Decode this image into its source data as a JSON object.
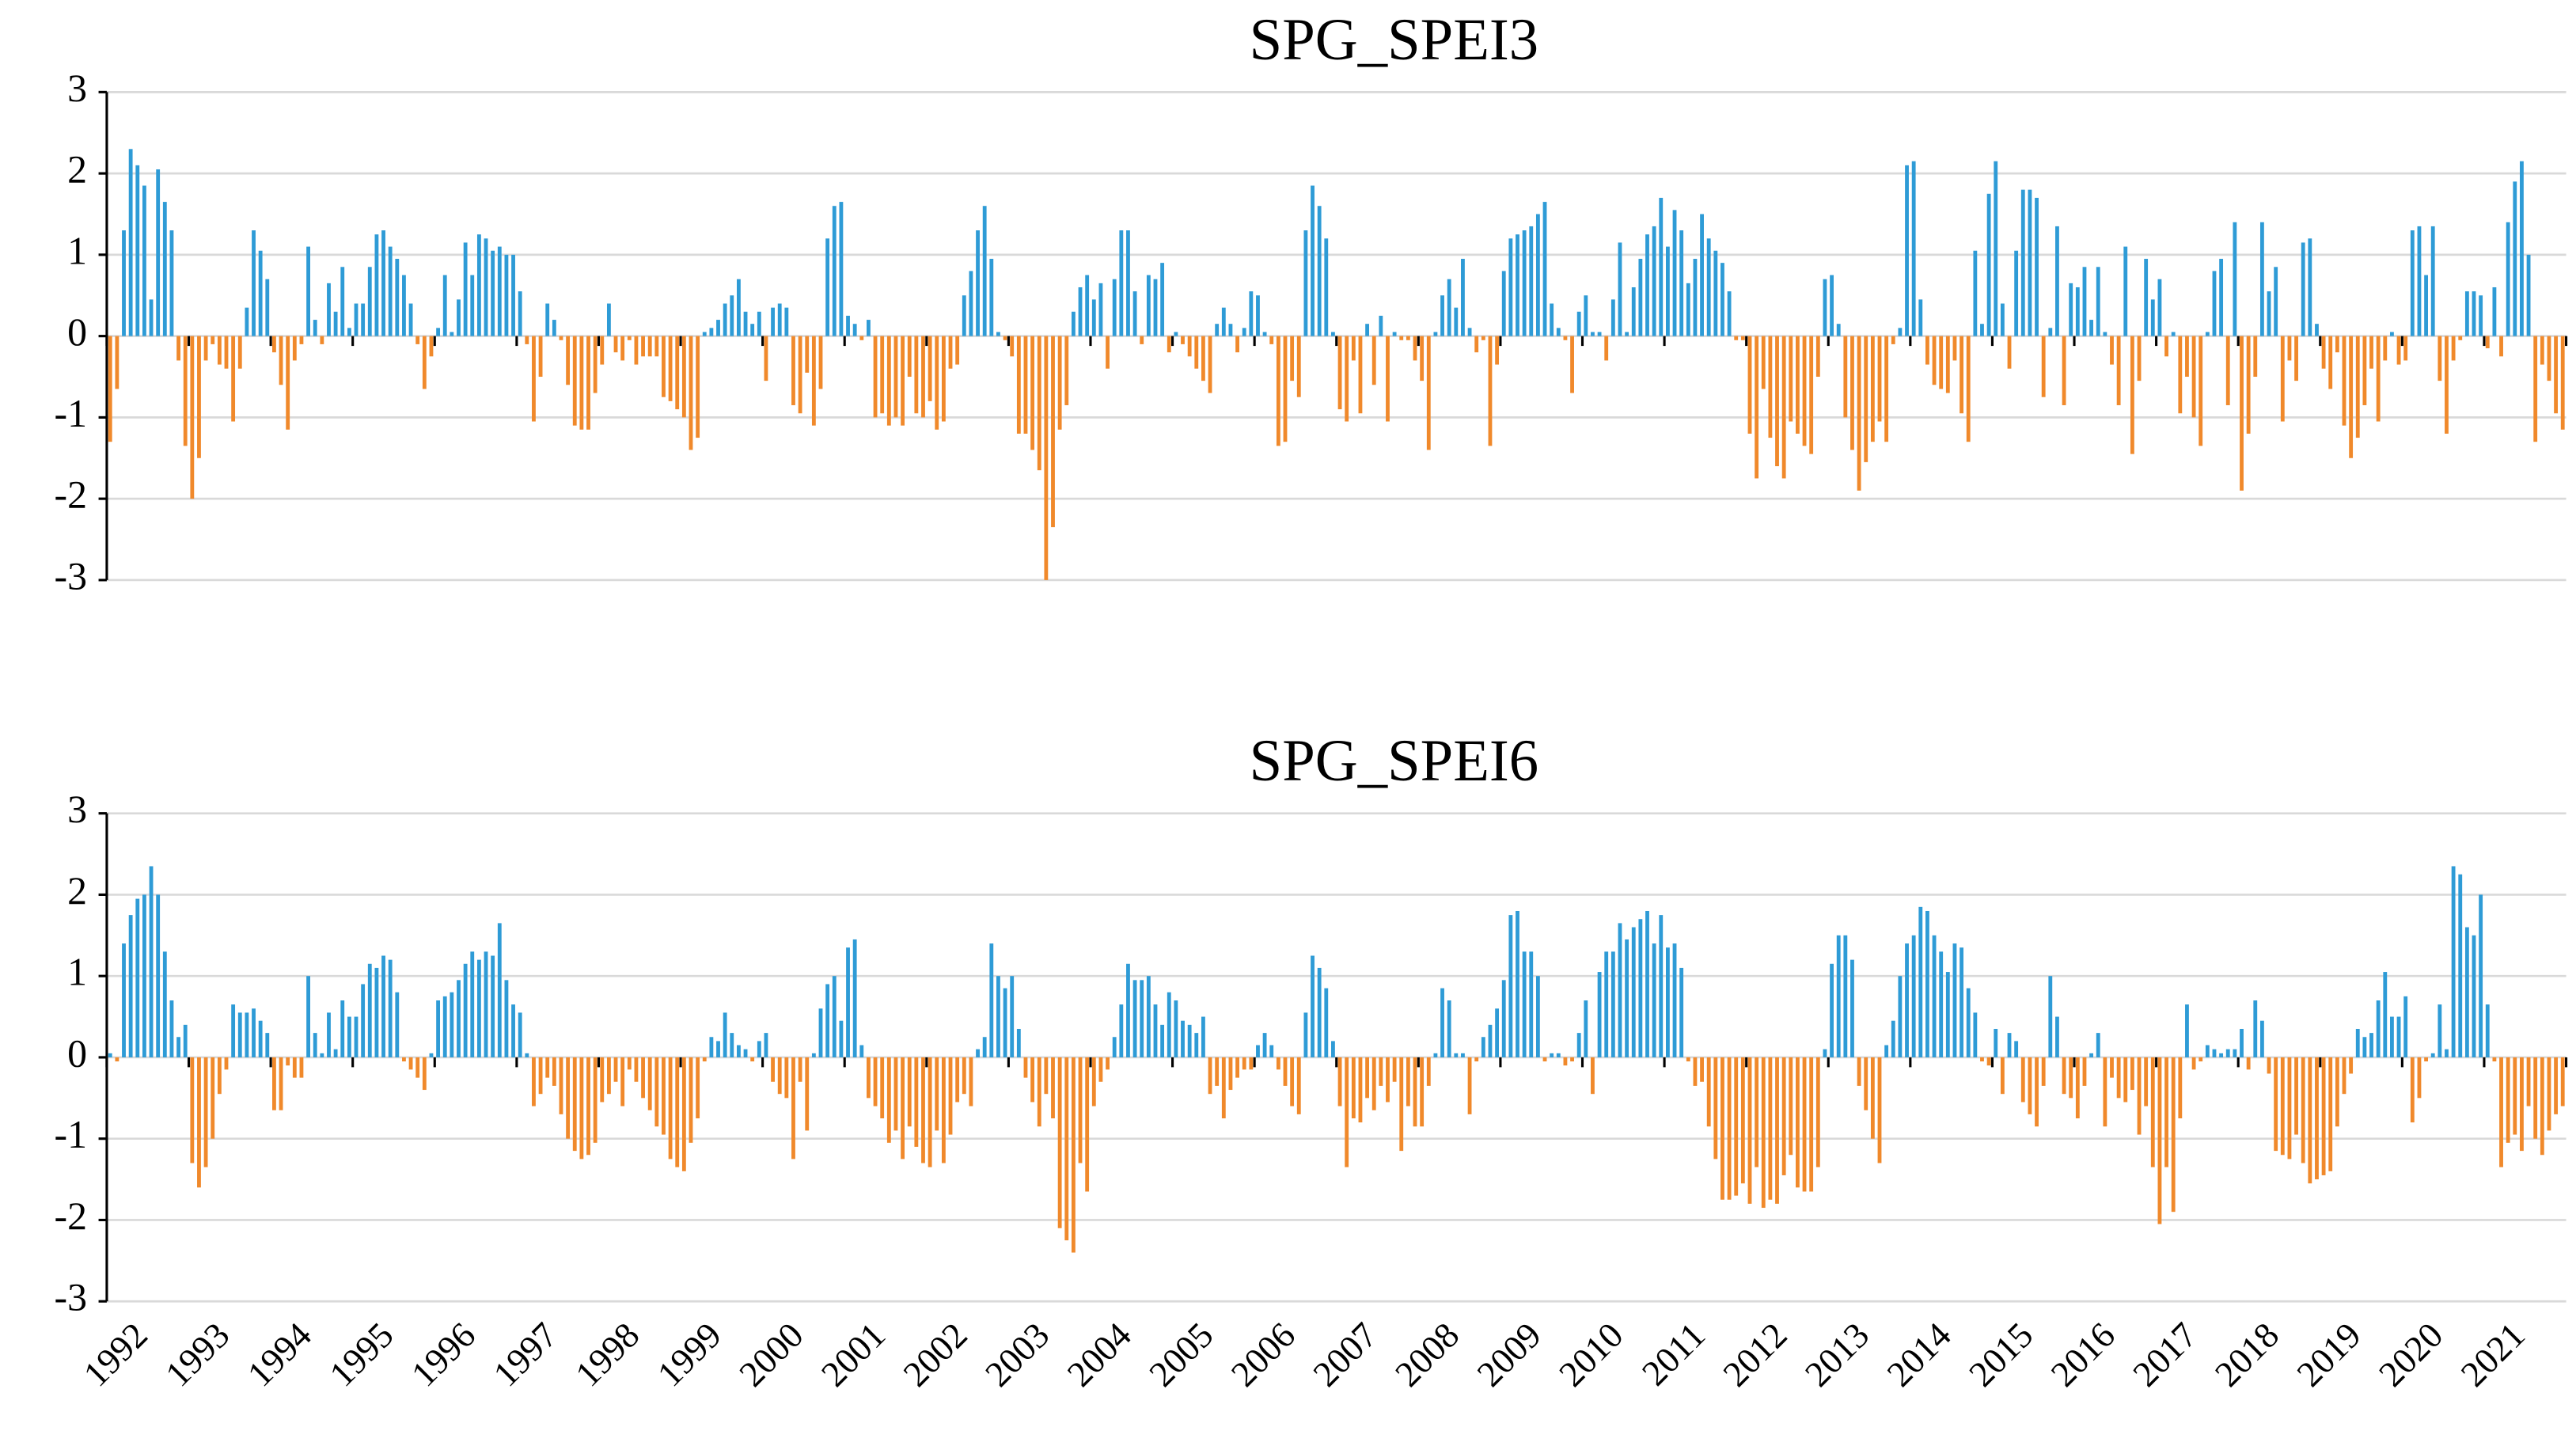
{
  "chart_data": [
    {
      "type": "bar",
      "title": "SPG_SPEI3",
      "ylim": [
        -3,
        3
      ],
      "yticks": [
        -3,
        -2,
        -1,
        0,
        1,
        2,
        3
      ],
      "grid": true,
      "positive_color": "#2e9bd6",
      "negative_color": "#f0892b",
      "values": [
        -1.3,
        -0.65,
        1.3,
        2.3,
        2.1,
        1.85,
        0.45,
        2.05,
        1.65,
        1.3,
        -0.3,
        -1.35,
        -2.0,
        -1.5,
        -0.3,
        -0.1,
        -0.35,
        -0.4,
        -1.05,
        -0.4,
        0.35,
        1.3,
        1.05,
        0.7,
        -0.2,
        -0.6,
        -1.15,
        -0.3,
        -0.1,
        1.1,
        0.2,
        -0.1,
        0.65,
        0.3,
        0.85,
        0.1,
        0.4,
        0.4,
        0.85,
        1.25,
        1.3,
        1.1,
        0.95,
        0.75,
        0.4,
        -0.1,
        -0.65,
        -0.25,
        0.1,
        0.75,
        0.05,
        0.45,
        1.15,
        0.75,
        1.25,
        1.2,
        1.05,
        1.1,
        1.0,
        1.0,
        0.55,
        -0.1,
        -1.05,
        -0.5,
        0.4,
        0.2,
        -0.05,
        -0.6,
        -1.1,
        -1.15,
        -1.15,
        -0.7,
        -0.35,
        0.4,
        -0.2,
        -0.3,
        -0.05,
        -0.35,
        -0.25,
        -0.25,
        -0.25,
        -0.75,
        -0.8,
        -0.9,
        -1.0,
        -1.4,
        -1.25,
        0.05,
        0.1,
        0.2,
        0.4,
        0.5,
        0.7,
        0.3,
        0.15,
        0.3,
        -0.55,
        0.35,
        0.4,
        0.35,
        -0.85,
        -0.95,
        -0.45,
        -1.1,
        -0.65,
        1.2,
        1.6,
        1.65,
        0.25,
        0.15,
        -0.05,
        0.2,
        -1.0,
        -0.95,
        -1.1,
        -1.0,
        -1.1,
        -0.5,
        -0.95,
        -1.0,
        -0.8,
        -1.15,
        -1.05,
        -0.4,
        -0.35,
        0.5,
        0.8,
        1.3,
        1.6,
        0.95,
        0.05,
        -0.05,
        -0.25,
        -1.2,
        -1.2,
        -1.4,
        -1.65,
        -3.0,
        -2.35,
        -1.15,
        -0.85,
        0.3,
        0.6,
        0.75,
        0.45,
        0.65,
        -0.4,
        0.7,
        1.3,
        1.3,
        0.55,
        -0.1,
        0.75,
        0.7,
        0.9,
        -0.2,
        0.05,
        -0.1,
        -0.25,
        -0.4,
        -0.55,
        -0.7,
        0.15,
        0.35,
        0.15,
        -0.2,
        0.1,
        0.55,
        0.5,
        0.05,
        -0.1,
        -1.35,
        -1.3,
        -0.55,
        -0.75,
        1.3,
        1.85,
        1.6,
        1.2,
        0.05,
        -0.9,
        -1.05,
        -0.3,
        -0.95,
        0.15,
        -0.6,
        0.25,
        -1.05,
        0.05,
        -0.05,
        -0.05,
        -0.3,
        -0.55,
        -1.4,
        0.05,
        0.5,
        0.7,
        0.35,
        0.95,
        0.1,
        -0.2,
        -0.05,
        -1.35,
        -0.35,
        0.8,
        1.2,
        1.25,
        1.3,
        1.35,
        1.5,
        1.65,
        0.4,
        0.1,
        -0.05,
        -0.7,
        0.3,
        0.5,
        0.05,
        0.05,
        -0.3,
        0.45,
        1.15,
        0.05,
        0.6,
        0.95,
        1.25,
        1.35,
        1.7,
        1.1,
        1.55,
        1.3,
        0.65,
        0.95,
        1.5,
        1.2,
        1.05,
        0.9,
        0.55,
        -0.05,
        -0.05,
        -1.2,
        -1.75,
        -0.65,
        -1.25,
        -1.6,
        -1.75,
        -1.05,
        -1.2,
        -1.35,
        -1.45,
        -0.5,
        0.7,
        0.75,
        0.15,
        -1.0,
        -1.4,
        -1.9,
        -1.55,
        -1.3,
        -1.05,
        -1.3,
        -0.1,
        0.1,
        2.1,
        2.15,
        0.45,
        -0.35,
        -0.6,
        -0.65,
        -0.7,
        -0.3,
        -0.95,
        -1.3,
        1.05,
        0.15,
        1.75,
        2.15,
        0.4,
        -0.4,
        1.05,
        1.8,
        1.8,
        1.7,
        -0.75,
        0.1,
        1.35,
        -0.85,
        0.65,
        0.6,
        0.85,
        0.2,
        0.85,
        0.05,
        -0.35,
        -0.85,
        1.1,
        -1.45,
        -0.55,
        0.95,
        0.45,
        0.7,
        -0.25,
        0.05,
        -0.95,
        -0.5,
        -1.0,
        -1.35,
        0.05,
        0.8,
        0.95,
        -0.85,
        1.4,
        -1.9,
        -1.2,
        -0.5,
        1.4,
        0.55,
        0.85,
        -1.05,
        -0.3,
        -0.55,
        1.15,
        1.2,
        0.15,
        -0.4,
        -0.65,
        -0.2,
        -1.1,
        -1.5,
        -1.25,
        -0.85,
        -0.4,
        -1.05,
        -0.3,
        0.05,
        -0.35,
        -0.3,
        1.3,
        1.35,
        0.75,
        1.35,
        -0.55,
        -1.2,
        -0.3,
        -0.05,
        0.55,
        0.55,
        0.5,
        -0.15,
        0.6,
        -0.25,
        1.4,
        1.9,
        2.15,
        1.0,
        -1.3,
        -0.35,
        -0.55,
        -0.95,
        -1.15
      ]
    },
    {
      "type": "bar",
      "title": "SPG_SPEI6",
      "ylim": [
        -3,
        3
      ],
      "yticks": [
        -3,
        -2,
        -1,
        0,
        1,
        2,
        3
      ],
      "grid": true,
      "positive_color": "#2e9bd6",
      "negative_color": "#f0892b",
      "categories": [
        "1992",
        null,
        null,
        null,
        null,
        null,
        null,
        null,
        null,
        null,
        null,
        null,
        "1993",
        null,
        null,
        null,
        null,
        null,
        null,
        null,
        null,
        null,
        null,
        null,
        "1994",
        null,
        null,
        null,
        null,
        null,
        null,
        null,
        null,
        null,
        null,
        null,
        "1995",
        null,
        null,
        null,
        null,
        null,
        null,
        null,
        null,
        null,
        null,
        null,
        "1996",
        null,
        null,
        null,
        null,
        null,
        null,
        null,
        null,
        null,
        null,
        null,
        "1997",
        null,
        null,
        null,
        null,
        null,
        null,
        null,
        null,
        null,
        null,
        null,
        "1998",
        null,
        null,
        null,
        null,
        null,
        null,
        null,
        null,
        null,
        null,
        null,
        "1999",
        null,
        null,
        null,
        null,
        null,
        null,
        null,
        null,
        null,
        null,
        null,
        "2000",
        null,
        null,
        null,
        null,
        null,
        null,
        null,
        null,
        null,
        null,
        null,
        "2001",
        null,
        null,
        null,
        null,
        null,
        null,
        null,
        null,
        null,
        null,
        null,
        "2002",
        null,
        null,
        null,
        null,
        null,
        null,
        null,
        null,
        null,
        null,
        null,
        "2003",
        null,
        null,
        null,
        null,
        null,
        null,
        null,
        null,
        null,
        null,
        null,
        "2004",
        null,
        null,
        null,
        null,
        null,
        null,
        null,
        null,
        null,
        null,
        null,
        "2005",
        null,
        null,
        null,
        null,
        null,
        null,
        null,
        null,
        null,
        null,
        null,
        "2006",
        null,
        null,
        null,
        null,
        null,
        null,
        null,
        null,
        null,
        null,
        null,
        "2007",
        null,
        null,
        null,
        null,
        null,
        null,
        null,
        null,
        null,
        null,
        null,
        "2008",
        null,
        null,
        null,
        null,
        null,
        null,
        null,
        null,
        null,
        null,
        null,
        "2009",
        null,
        null,
        null,
        null,
        null,
        null,
        null,
        null,
        null,
        null,
        null,
        "2010",
        null,
        null,
        null,
        null,
        null,
        null,
        null,
        null,
        null,
        null,
        null,
        "2011",
        null,
        null,
        null,
        null,
        null,
        null,
        null,
        null,
        null,
        null,
        null,
        "2012",
        null,
        null,
        null,
        null,
        null,
        null,
        null,
        null,
        null,
        null,
        null,
        "2013",
        null,
        null,
        null,
        null,
        null,
        null,
        null,
        null,
        null,
        null,
        null,
        "2014",
        null,
        null,
        null,
        null,
        null,
        null,
        null,
        null,
        null,
        null,
        null,
        "2015",
        null,
        null,
        null,
        null,
        null,
        null,
        null,
        null,
        null,
        null,
        null,
        "2016",
        null,
        null,
        null,
        null,
        null,
        null,
        null,
        null,
        null,
        null,
        null,
        "2017",
        null,
        null,
        null,
        null,
        null,
        null,
        null,
        null,
        null,
        null,
        null,
        "2018",
        null,
        null,
        null,
        null,
        null,
        null,
        null,
        null,
        null,
        null,
        null,
        "2019",
        null,
        null,
        null,
        null,
        null,
        null,
        null,
        null,
        null,
        null,
        null,
        "2020",
        null,
        null,
        null,
        null,
        null,
        null,
        null,
        null,
        null,
        null,
        null,
        "2021",
        null,
        null,
        null,
        null,
        null,
        null,
        null,
        null,
        null,
        null,
        null
      ],
      "values": [
        0.05,
        -0.05,
        1.4,
        1.75,
        1.95,
        2.0,
        2.35,
        2.0,
        1.3,
        0.7,
        0.25,
        0.4,
        -1.3,
        -1.6,
        -1.35,
        -1.0,
        -0.45,
        -0.15,
        0.65,
        0.55,
        0.55,
        0.6,
        0.45,
        0.3,
        -0.65,
        -0.65,
        -0.1,
        -0.25,
        -0.25,
        1.0,
        0.3,
        0.05,
        0.55,
        0.1,
        0.7,
        0.5,
        0.5,
        0.9,
        1.15,
        1.1,
        1.25,
        1.2,
        0.8,
        -0.05,
        -0.15,
        -0.25,
        -0.4,
        0.05,
        0.7,
        0.75,
        0.8,
        0.95,
        1.15,
        1.3,
        1.2,
        1.3,
        1.25,
        1.65,
        0.95,
        0.65,
        0.55,
        0.05,
        -0.6,
        -0.45,
        -0.25,
        -0.35,
        -0.7,
        -1.0,
        -1.15,
        -1.25,
        -1.2,
        -1.05,
        -0.55,
        -0.45,
        -0.3,
        -0.6,
        -0.15,
        -0.3,
        -0.5,
        -0.65,
        -0.85,
        -0.95,
        -1.25,
        -1.35,
        -1.4,
        -1.05,
        -0.75,
        -0.05,
        0.25,
        0.2,
        0.55,
        0.3,
        0.15,
        0.1,
        -0.05,
        0.2,
        0.3,
        -0.3,
        -0.45,
        -0.5,
        -1.25,
        -0.3,
        -0.9,
        0.05,
        0.6,
        0.9,
        1.0,
        0.45,
        1.35,
        1.45,
        0.15,
        -0.5,
        -0.6,
        -0.75,
        -1.05,
        -0.9,
        -1.25,
        -0.85,
        -1.1,
        -1.3,
        -1.35,
        -0.9,
        -1.3,
        -0.95,
        -0.55,
        -0.45,
        -0.6,
        0.1,
        0.25,
        1.4,
        1.0,
        0.85,
        1.0,
        0.35,
        -0.25,
        -0.55,
        -0.85,
        -0.45,
        -0.75,
        -2.1,
        -2.25,
        -2.4,
        -1.3,
        -1.65,
        -0.6,
        -0.3,
        -0.15,
        0.25,
        0.65,
        1.15,
        0.95,
        0.95,
        1.0,
        0.65,
        0.4,
        0.8,
        0.7,
        0.45,
        0.4,
        0.3,
        0.5,
        -0.45,
        -0.35,
        -0.75,
        -0.4,
        -0.25,
        -0.15,
        -0.15,
        0.15,
        0.3,
        0.15,
        -0.15,
        -0.35,
        -0.6,
        -0.7,
        0.55,
        1.25,
        1.1,
        0.85,
        0.2,
        -0.6,
        -1.35,
        -0.75,
        -0.8,
        -0.5,
        -0.65,
        -0.35,
        -0.55,
        -0.3,
        -1.15,
        -0.6,
        -0.85,
        -0.85,
        -0.35,
        0.05,
        0.85,
        0.7,
        0.05,
        0.05,
        -0.7,
        -0.05,
        0.25,
        0.4,
        0.6,
        0.95,
        1.75,
        1.8,
        1.3,
        1.3,
        1.0,
        -0.05,
        0.05,
        0.05,
        -0.1,
        -0.05,
        0.3,
        0.7,
        -0.45,
        1.05,
        1.3,
        1.3,
        1.65,
        1.45,
        1.6,
        1.7,
        1.8,
        1.4,
        1.75,
        1.35,
        1.4,
        1.1,
        -0.05,
        -0.35,
        -0.3,
        -0.85,
        -1.25,
        -1.75,
        -1.75,
        -1.7,
        -1.55,
        -1.8,
        -1.35,
        -1.85,
        -1.75,
        -1.8,
        -1.45,
        -1.2,
        -1.6,
        -1.65,
        -1.65,
        -1.35,
        0.1,
        1.15,
        1.5,
        1.5,
        1.2,
        -0.35,
        -0.65,
        -1.0,
        -1.3,
        0.15,
        0.45,
        1.0,
        1.4,
        1.5,
        1.85,
        1.8,
        1.5,
        1.3,
        1.05,
        1.4,
        1.35,
        0.85,
        0.55,
        -0.05,
        -0.1,
        0.35,
        -0.45,
        0.3,
        0.2,
        -0.55,
        -0.7,
        -0.85,
        -0.35,
        1.0,
        0.5,
        -0.45,
        -0.5,
        -0.75,
        -0.35,
        0.05,
        0.3,
        -0.85,
        -0.25,
        -0.5,
        -0.55,
        -0.4,
        -0.95,
        -0.6,
        -1.35,
        -2.05,
        -1.35,
        -1.9,
        -0.75,
        0.65,
        -0.15,
        -0.05,
        0.15,
        0.1,
        0.05,
        0.1,
        0.1,
        0.35,
        -0.15,
        0.7,
        0.45,
        -0.2,
        -1.15,
        -1.2,
        -1.25,
        -0.95,
        -1.3,
        -1.55,
        -1.5,
        -1.45,
        -1.4,
        -0.85,
        -0.45,
        -0.2,
        0.35,
        0.25,
        0.3,
        0.7,
        1.05,
        0.5,
        0.5,
        0.75,
        -0.8,
        -0.5,
        -0.05,
        0.05,
        0.65,
        0.1,
        2.35,
        2.25,
        1.6,
        1.5,
        2.0,
        0.65,
        -0.05,
        -1.35,
        -1.05,
        -0.95,
        -1.15,
        -0.6,
        -1.0,
        -1.2,
        -0.9,
        -0.7,
        -0.6
      ]
    }
  ]
}
